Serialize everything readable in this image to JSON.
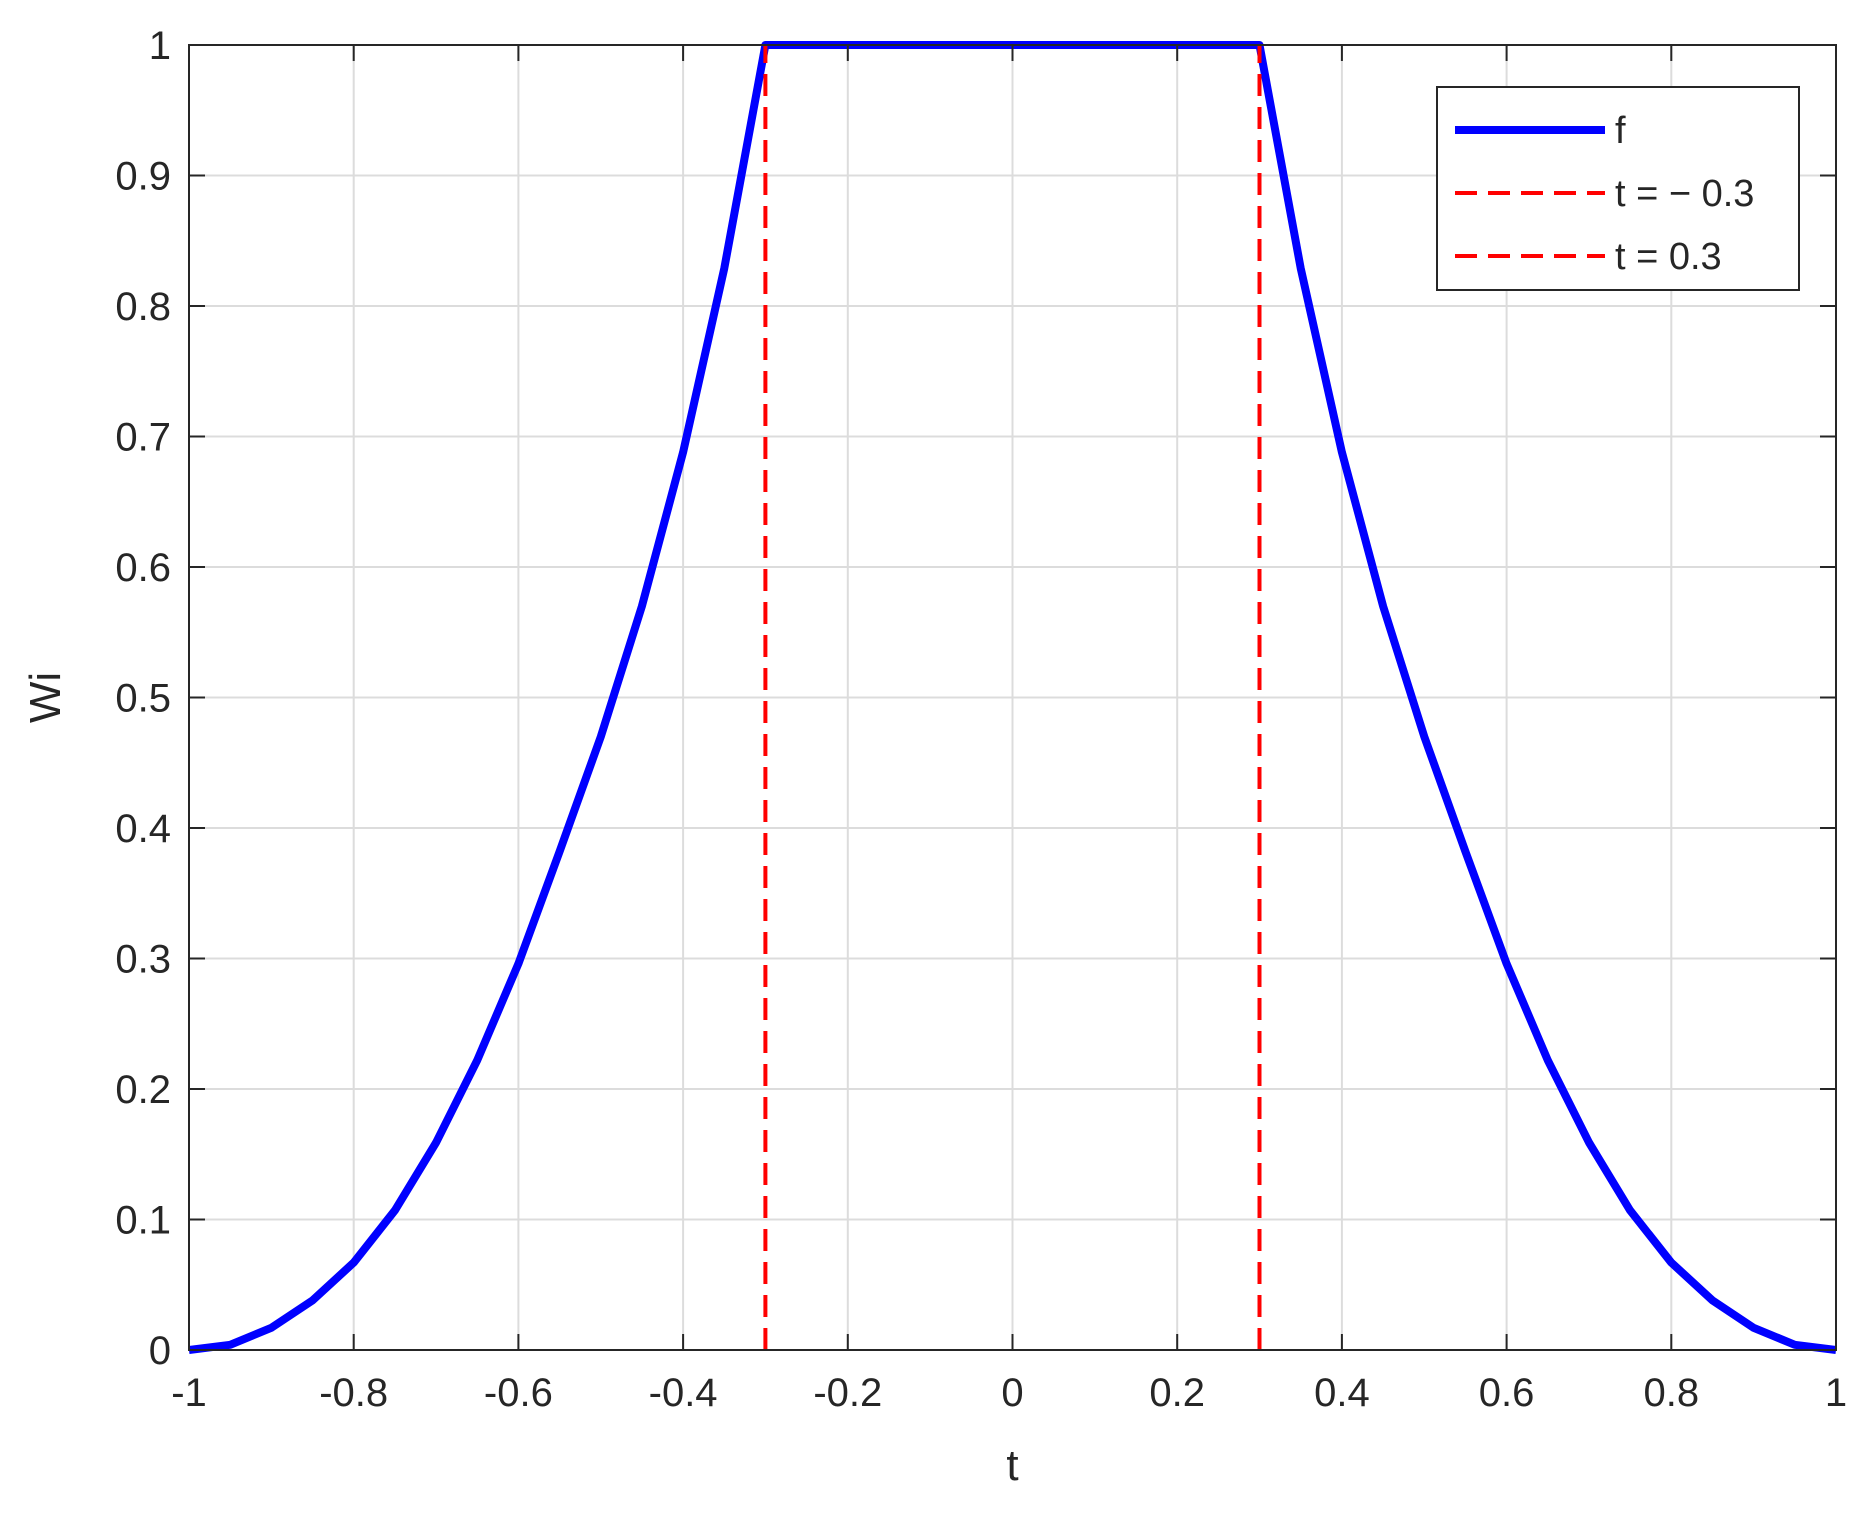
{
  "chart_data": {
    "type": "line",
    "title": "",
    "xlabel": "t",
    "ylabel": "Wi",
    "xlim": [
      -1,
      1
    ],
    "ylim": [
      0,
      1
    ],
    "grid": true,
    "legend_position": "top-right",
    "xticks": [
      -1,
      -0.8,
      -0.6,
      -0.4,
      -0.2,
      0,
      0.2,
      0.4,
      0.6,
      0.8,
      1
    ],
    "xtick_labels": [
      "-1",
      "-0.8",
      "-0.6",
      "-0.4",
      "-0.2",
      "0",
      "0.2",
      "0.4",
      "0.6",
      "0.8",
      "1"
    ],
    "yticks": [
      0,
      0.1,
      0.2,
      0.3,
      0.4,
      0.5,
      0.6,
      0.7,
      0.8,
      0.9,
      1
    ],
    "ytick_labels": [
      "0",
      "0.1",
      "0.2",
      "0.3",
      "0.4",
      "0.5",
      "0.6",
      "0.7",
      "0.8",
      "0.9",
      "1"
    ],
    "series": [
      {
        "name": "f",
        "color": "#0000ff",
        "style": "solid",
        "x": [
          -1,
          -0.95,
          -0.9,
          -0.85,
          -0.8,
          -0.75,
          -0.7,
          -0.65,
          -0.6,
          -0.55,
          -0.5,
          -0.45,
          -0.4,
          -0.35,
          -0.3,
          -0.2,
          -0.1,
          0,
          0.1,
          0.2,
          0.3,
          0.35,
          0.4,
          0.45,
          0.5,
          0.55,
          0.6,
          0.65,
          0.7,
          0.75,
          0.8,
          0.85,
          0.9,
          0.95,
          1
        ],
        "y": [
          0,
          0.004,
          0.017,
          0.038,
          0.067,
          0.107,
          0.159,
          0.222,
          0.296,
          0.382,
          0.47,
          0.57,
          0.688,
          0.829,
          1,
          1,
          1,
          1,
          1,
          1,
          1,
          0.829,
          0.688,
          0.57,
          0.47,
          0.382,
          0.296,
          0.222,
          0.159,
          0.107,
          0.067,
          0.038,
          0.017,
          0.004,
          0
        ]
      },
      {
        "name": "t = − 0.3",
        "color": "#ff0000",
        "style": "dashed",
        "x": [
          -0.3,
          -0.3
        ],
        "y": [
          0,
          1
        ]
      },
      {
        "name": "t = 0.3",
        "color": "#ff0000",
        "style": "dashed",
        "x": [
          0.3,
          0.3
        ],
        "y": [
          0,
          1
        ]
      }
    ]
  }
}
